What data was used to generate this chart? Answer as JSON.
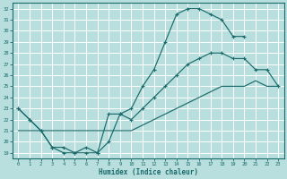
{
  "xlabel": "Humidex (Indice chaleur)",
  "bg_color": "#b8dede",
  "grid_color": "#ffffff",
  "line_color": "#1a6b6b",
  "xlim": [
    -0.5,
    23.5
  ],
  "ylim": [
    18.5,
    32.5
  ],
  "xticks": [
    0,
    1,
    2,
    3,
    4,
    5,
    6,
    7,
    8,
    9,
    10,
    11,
    12,
    13,
    14,
    15,
    16,
    17,
    18,
    19,
    20,
    21,
    22,
    23
  ],
  "yticks": [
    19,
    20,
    21,
    22,
    23,
    24,
    25,
    26,
    27,
    28,
    29,
    30,
    31,
    32
  ],
  "line1_x": [
    0,
    1,
    2,
    3,
    4,
    5,
    6,
    7,
    8,
    9,
    10,
    11,
    12,
    13,
    14,
    15,
    16,
    17,
    18,
    19,
    20
  ],
  "line1_y": [
    23,
    22,
    21,
    19.5,
    19,
    19,
    19,
    19,
    22.5,
    22.5,
    23,
    25,
    26.5,
    29,
    31.5,
    32,
    32,
    31.5,
    31,
    29.5,
    29.5
  ],
  "line2_x": [
    0,
    1,
    2,
    3,
    4,
    5,
    6,
    7,
    8,
    9,
    10,
    11,
    12,
    13,
    14,
    15,
    16,
    17,
    18,
    19,
    20,
    21,
    22,
    23
  ],
  "line2_y": [
    23,
    22,
    21,
    19.5,
    19.5,
    19,
    19.5,
    19,
    20,
    22.5,
    22,
    23,
    24,
    25,
    26,
    27,
    27.5,
    28,
    28,
    27.5,
    27.5,
    26.5,
    26.5,
    25
  ],
  "line3_x": [
    0,
    1,
    2,
    3,
    4,
    5,
    6,
    7,
    8,
    9,
    10,
    11,
    12,
    13,
    14,
    15,
    16,
    17,
    18,
    19,
    20,
    21,
    22,
    23
  ],
  "line3_y": [
    21,
    21,
    21,
    21,
    21,
    21,
    21,
    21,
    21,
    21,
    21,
    21.5,
    22,
    22.5,
    23,
    23.5,
    24,
    24.5,
    25,
    25,
    25,
    25.5,
    25,
    25
  ]
}
